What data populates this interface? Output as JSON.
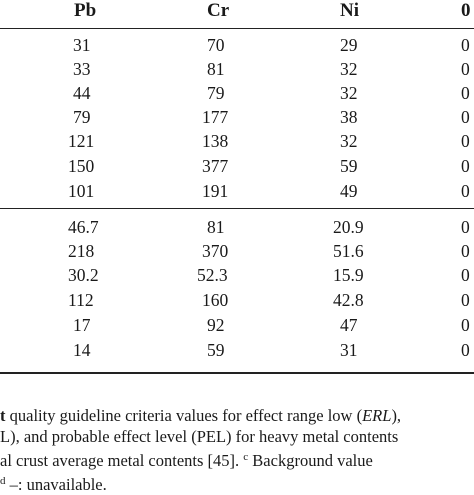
{
  "table": {
    "headers": [
      "Pb",
      "Cr",
      "Ni",
      "0"
    ],
    "group1": [
      [
        "31",
        "70",
        "29",
        "0"
      ],
      [
        "33",
        "81",
        "32",
        "0"
      ],
      [
        "44",
        "79",
        "32",
        "0"
      ],
      [
        "79",
        "177",
        "38",
        "0"
      ],
      [
        "121",
        "138",
        "32",
        "0"
      ],
      [
        "150",
        "377",
        "59",
        "0"
      ],
      [
        "101",
        "191",
        "49",
        "0"
      ]
    ],
    "group2": [
      [
        "46.7",
        "81",
        "20.9",
        "0"
      ],
      [
        "218",
        "370",
        "51.6",
        "0"
      ],
      [
        "30.2",
        "52.3",
        "15.9",
        "0"
      ],
      [
        "112",
        "160",
        "42.8",
        "0"
      ],
      [
        "17",
        "92",
        "47",
        "0"
      ],
      [
        "14",
        "59",
        "31",
        "0"
      ]
    ]
  },
  "footnote": {
    "line1": {
      "bold_lead": "t",
      "text_a": " quality guideline criteria values for effect range low (",
      "erl": "ERL",
      "text_b": "),"
    },
    "line2": {
      "lead": "L",
      "text": "), and probable effect level (PEL) for heavy metal contents"
    },
    "line3": {
      "text_a": "al crust average metal contents [",
      "ref": "45",
      "text_b": "]. ",
      "sup_c": "c",
      "text_c": " Background value"
    },
    "line4": {
      "sup_d": "d",
      "text": " –: unavailable."
    }
  }
}
